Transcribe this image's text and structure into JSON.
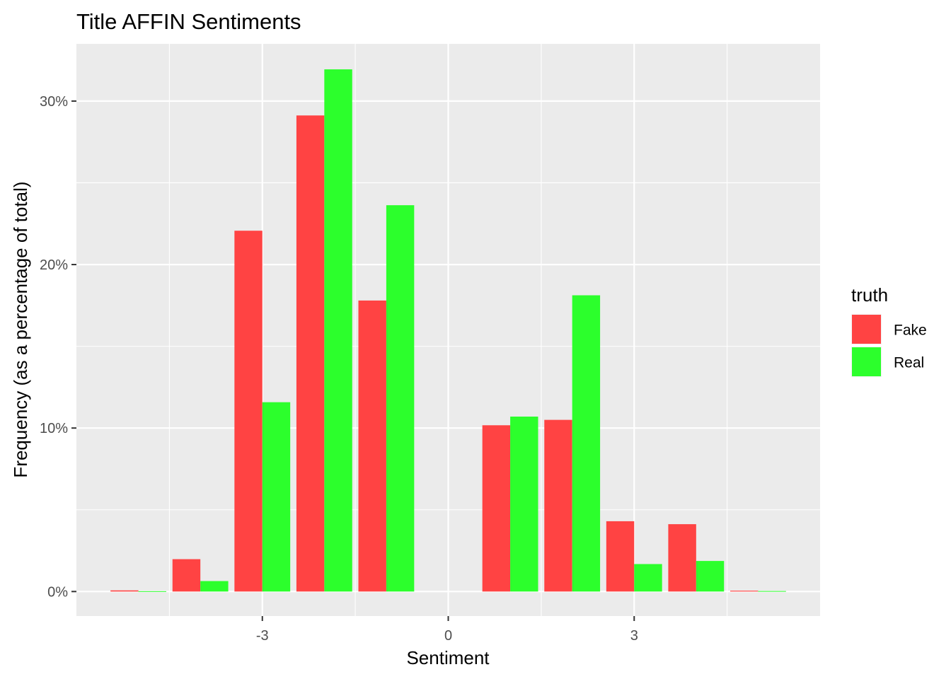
{
  "chart_data": {
    "type": "bar",
    "title": "Title AFFIN Sentiments",
    "xlabel": "Sentiment",
    "ylabel": "Frequency (as a percentage of total)",
    "x": [
      -5,
      -4,
      -3,
      -2,
      -1,
      0,
      1,
      2,
      3,
      4,
      5
    ],
    "xlim": [
      -6,
      6
    ],
    "ylim": [
      -1.5,
      33.5
    ],
    "x_ticks": [
      -3,
      0,
      3
    ],
    "x_tick_labels": [
      "-3",
      "0",
      "3"
    ],
    "y_ticks": [
      0,
      10,
      20,
      30
    ],
    "y_tick_labels": [
      "0%",
      "10%",
      "20%",
      "30%"
    ],
    "grid": true,
    "legend": {
      "title": "truth",
      "position": "right"
    },
    "series": [
      {
        "name": "Fake",
        "color": "#ff4343",
        "values": [
          0.07,
          1.98,
          22.07,
          29.12,
          17.8,
          0,
          10.17,
          10.5,
          4.3,
          4.12,
          0.05
        ]
      },
      {
        "name": "Real",
        "color": "#2cff2c",
        "values": [
          0.02,
          0.64,
          11.58,
          31.94,
          23.63,
          0,
          10.7,
          18.12,
          1.68,
          1.87,
          0.03
        ]
      }
    ],
    "panel_color": "#ebebeb",
    "grid_color": "#ffffff"
  }
}
